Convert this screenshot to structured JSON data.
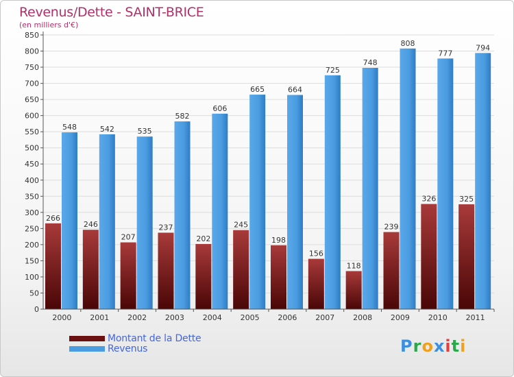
{
  "header": {
    "title": "Revenus/Dette - SAINT-BRICE",
    "subtitle": "(en milliers d'€)"
  },
  "chart_data": {
    "type": "bar",
    "title": "Revenus/Dette - SAINT-BRICE",
    "subtitle": "(en milliers d'€)",
    "xlabel": "",
    "ylabel": "",
    "ylim": [
      0,
      850
    ],
    "ytick_step": 50,
    "grid": true,
    "categories": [
      "2000",
      "2001",
      "2002",
      "2003",
      "2004",
      "2005",
      "2006",
      "2007",
      "2008",
      "2009",
      "2010",
      "2011"
    ],
    "series": [
      {
        "name": "Montant de la Dette",
        "color": "#7a1a1a",
        "values": [
          266,
          246,
          207,
          237,
          202,
          245,
          198,
          156,
          118,
          239,
          326,
          325
        ]
      },
      {
        "name": "Revenus",
        "color": "#4a9be0",
        "values": [
          548,
          542,
          535,
          582,
          606,
          665,
          664,
          725,
          748,
          808,
          777,
          794
        ]
      }
    ],
    "legend_position": "bottom-left"
  },
  "legend": {
    "items": [
      {
        "label": "Montant de la Dette",
        "color": "#6b1010"
      },
      {
        "label": "Revenus",
        "color": "#4a9be0"
      }
    ]
  },
  "logo": {
    "letters": [
      "P",
      "r",
      "o",
      "x",
      "i",
      "t",
      "i"
    ],
    "colors": [
      "#3a8fe0",
      "#2aa84a",
      "#f0a020",
      "#3a8fe0",
      "#e04040",
      "#2aa84a",
      "#f0a020"
    ]
  }
}
